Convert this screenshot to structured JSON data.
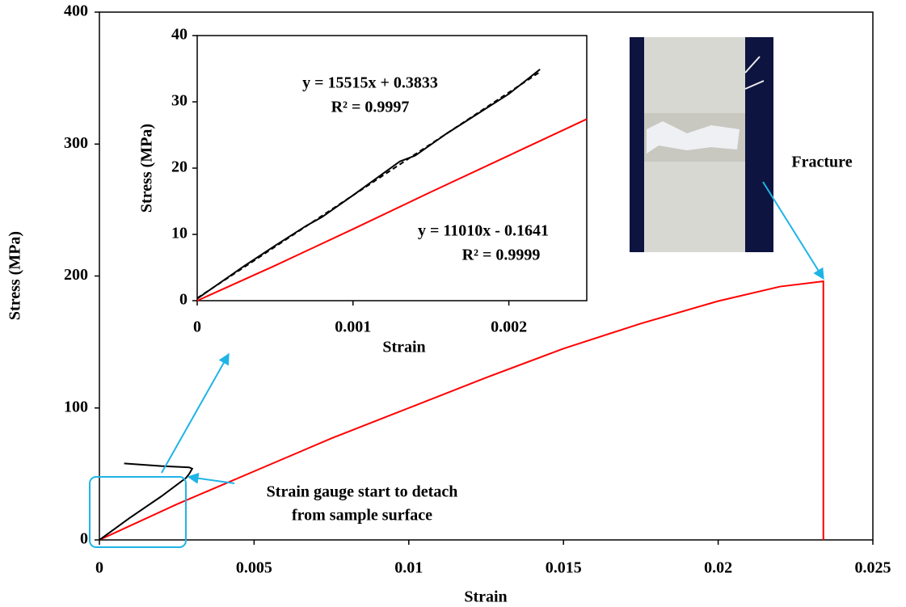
{
  "chart_data": [
    {
      "type": "line",
      "xlabel": "Strain",
      "ylabel": "Stress (MPa)",
      "xlim": [
        0,
        0.025
      ],
      "xticks": [
        0,
        0.005,
        0.01,
        0.015,
        0.02,
        0.025
      ],
      "ylim": [
        0,
        400
      ],
      "yticks": [
        0,
        100,
        200,
        300,
        400
      ],
      "series": [
        {
          "color": "#ff0000",
          "x": [
            0,
            0.0025,
            0.005,
            0.0075,
            0.01,
            0.0125,
            0.015,
            0.0175,
            0.02,
            0.022,
            0.0234,
            0.0234
          ],
          "values": [
            0,
            27,
            52,
            77,
            100,
            123,
            145,
            164,
            181,
            192,
            196,
            0
          ]
        },
        {
          "color": "#000000",
          "x": [
            0,
            0.001,
            0.002,
            0.0028,
            0.0029,
            0.003,
            0.0029,
            0.002,
            0.0008
          ],
          "values": [
            0,
            17,
            33,
            47,
            50,
            54,
            55,
            56,
            58
          ]
        }
      ],
      "annotations": [
        "Strain gauge start to detach",
        "from sample surface",
        "Fracture"
      ]
    },
    {
      "type": "line",
      "xlabel": "Strain",
      "ylabel": "Stress (MPa)",
      "xlim": [
        0,
        0.0025
      ],
      "xticks": [
        0,
        {
          "value": 0.001,
          "label": "0.001"
        },
        {
          "value": 0.002,
          "label": "0.002"
        }
      ],
      "ylim": [
        0,
        40
      ],
      "yticks": [
        0,
        10,
        20,
        30,
        40
      ],
      "series": [
        {
          "color": "#ff0000",
          "x": [
            0,
            0.0005,
            0.001,
            0.0015,
            0.002,
            0.0025
          ],
          "values": [
            0,
            5.3,
            10.8,
            16.4,
            21.9,
            27.4
          ]
        },
        {
          "color": "#000000",
          "x": [
            0,
            0.0003,
            0.0005,
            0.0007,
            0.0008,
            0.001,
            0.0012,
            0.0013,
            0.0014,
            0.0016,
            0.0018,
            0.002,
            0.0022
          ],
          "values": [
            0.3,
            5.2,
            8.3,
            11.3,
            12.6,
            15.9,
            19.3,
            21,
            21.9,
            25.2,
            28.2,
            31.2,
            34.9
          ]
        },
        {
          "color": "#000000",
          "dashed": true,
          "x": [
            0,
            0.0022
          ],
          "values": [
            0.3833,
            34.5166
          ]
        }
      ],
      "annotations": [
        "y = 15515x + 0.3833",
        "R² = 0.9997",
        "y = 11010x - 0.1641",
        "R² = 0.9999"
      ]
    }
  ]
}
